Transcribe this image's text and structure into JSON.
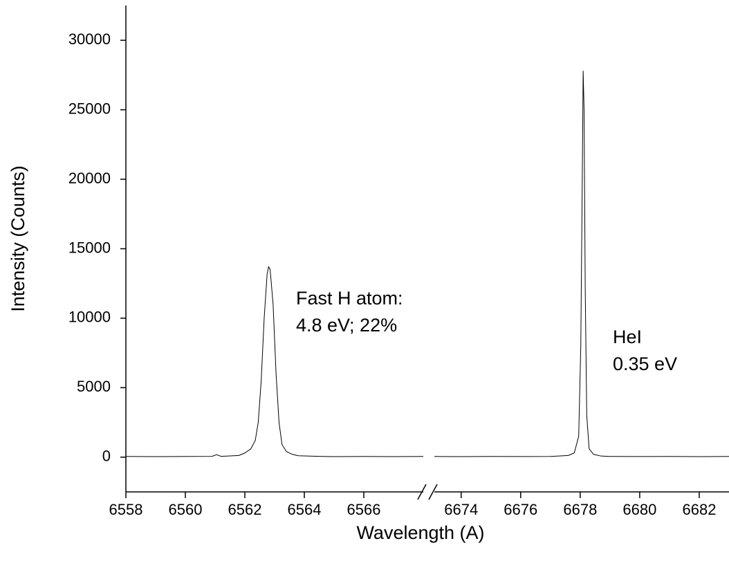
{
  "chart_data": {
    "type": "line",
    "xlabel": "Wavelength (A)",
    "ylabel": "Intensity (Counts)",
    "color": "#000000",
    "ylim": [
      -2500,
      32500
    ],
    "yticks": [
      0,
      5000,
      10000,
      15000,
      20000,
      25000,
      30000
    ],
    "annotations": [
      "Fast H atom:",
      "4.8 eV; 22%",
      "HeI",
      "0.35 eV"
    ],
    "segments": [
      {
        "xlim": [
          6558,
          6568
        ],
        "xticks": [
          6558,
          6560,
          6562,
          6564,
          6566
        ],
        "x": [
          6558,
          6559,
          6560,
          6560.9,
          6561.05,
          6561.2,
          6561.8,
          6562.0,
          6562.2,
          6562.35,
          6562.45,
          6562.55,
          6562.65,
          6562.75,
          6562.8,
          6562.85,
          6562.95,
          6563.05,
          6563.15,
          6563.25,
          6563.4,
          6563.6,
          6563.8,
          6564.5,
          6565,
          6566,
          6567,
          6568
        ],
        "values": [
          50,
          40,
          50,
          60,
          180,
          60,
          120,
          300,
          600,
          1200,
          2500,
          5500,
          10000,
          13200,
          13700,
          13500,
          11000,
          6000,
          2500,
          900,
          400,
          200,
          100,
          60,
          40,
          50,
          40,
          50
        ]
      },
      {
        "xlim": [
          6673.1,
          6683
        ],
        "xticks": [
          6674,
          6676,
          6678,
          6680,
          6682
        ],
        "x": [
          6673.1,
          6674,
          6675,
          6676,
          6677,
          6677.6,
          6677.8,
          6677.95,
          6678.02,
          6678.07,
          6678.1,
          6678.13,
          6678.17,
          6678.22,
          6678.3,
          6678.45,
          6678.7,
          6679,
          6680,
          6681,
          6682,
          6683
        ],
        "values": [
          50,
          40,
          50,
          45,
          50,
          120,
          300,
          1500,
          8000,
          20000,
          27800,
          25000,
          12000,
          3000,
          600,
          200,
          80,
          50,
          45,
          50,
          40,
          50
        ]
      }
    ]
  }
}
